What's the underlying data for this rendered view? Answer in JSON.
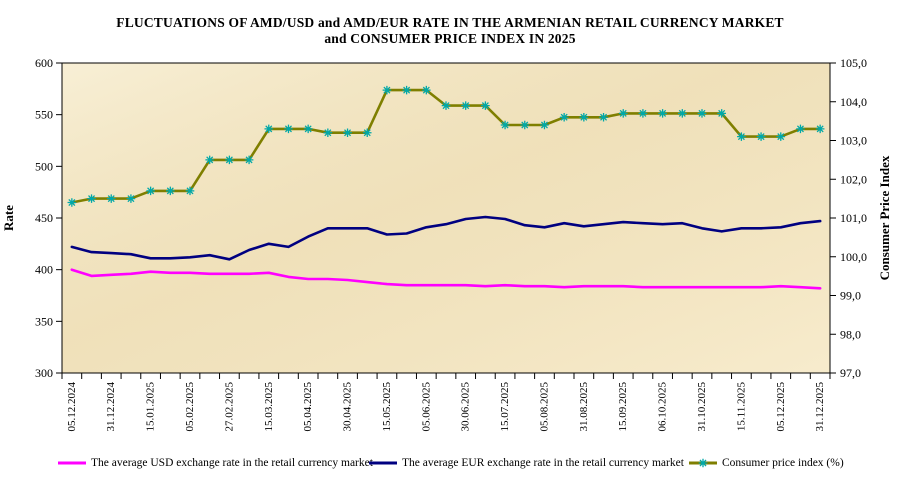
{
  "title": {
    "line1": "FLUCTUATIONS OF AMD/USD and AMD/EUR RATE IN THE ARMENIAN RETAIL CURRENCY MARKET",
    "line2": "and CONSUMER PRICE INDEX IN 2025"
  },
  "colors": {
    "background": "#FFFFFF",
    "plot_bg": "#F2E4C0",
    "axis": "#000000",
    "usd_line": "#FF00FF",
    "eur_line": "#000080",
    "cpi_line": "#7F7F00",
    "cpi_marker": "#00A8A8"
  },
  "chart_data": {
    "type": "line",
    "n_points": 39,
    "x_label_step": 2,
    "x_tick_labels": [
      "05.12.2024",
      "31.12.2024",
      "15.01.2025",
      "05.02.2025",
      "27.02.2025",
      "15.03.2025",
      "05.04.2025",
      "30.04.2025",
      "15.05.2025",
      "05.06.2025",
      "30.06.2025",
      "15.07.2025",
      "05.08.2025",
      "31.08.2025",
      "15.09.2025",
      "06.10.2025",
      "31.10.2025",
      "15.11.2025",
      "05.12.2025",
      "31.12.2025"
    ],
    "grid": false,
    "legend_position": "bottom",
    "axes": {
      "left": {
        "label": "Rate",
        "min": 300,
        "max": 600,
        "ticks": [
          "600",
          "550",
          "500",
          "450",
          "400",
          "350",
          "300"
        ]
      },
      "right": {
        "label": "Consumer  Price Index",
        "min": 97,
        "max": 105,
        "ticks": [
          "105,0",
          "104,0",
          "103,0",
          "102,0",
          "101,0",
          "100,0",
          "99,0",
          "98,0",
          "97,0"
        ]
      }
    },
    "series": [
      {
        "key": "usd",
        "name": "The average USD exchange rate in the retail currency market",
        "axis": "left",
        "color": "#FF00FF",
        "marker": null,
        "values": [
          400,
          394,
          395,
          396,
          398,
          397,
          397,
          396,
          396,
          396,
          397,
          393,
          391,
          391,
          390,
          388,
          386,
          385,
          385,
          385,
          385,
          384,
          385,
          384,
          384,
          383,
          384,
          384,
          384,
          383,
          383,
          383,
          383,
          383,
          383,
          383,
          384,
          383,
          382
        ]
      },
      {
        "key": "eur",
        "name": "The average EUR exchange rate in the retail currency market",
        "axis": "left",
        "color": "#000080",
        "marker": null,
        "values": [
          422,
          417,
          416,
          415,
          411,
          411,
          412,
          414,
          410,
          419,
          425,
          422,
          432,
          440,
          440,
          440,
          434,
          435,
          441,
          444,
          449,
          451,
          449,
          443,
          441,
          445,
          442,
          444,
          446,
          445,
          444,
          445,
          440,
          437,
          440,
          440,
          441,
          445,
          447
        ]
      },
      {
        "key": "cpi",
        "name": "Consumer price index (%)",
        "axis": "right",
        "color": "#7F7F00",
        "marker": {
          "shape": "asterisk",
          "color": "#00A8A8"
        },
        "values": [
          101.4,
          101.5,
          101.5,
          101.5,
          101.7,
          101.7,
          101.7,
          102.5,
          102.5,
          102.5,
          103.3,
          103.3,
          103.3,
          103.2,
          103.2,
          103.2,
          104.3,
          104.3,
          104.3,
          103.9,
          103.9,
          103.9,
          103.4,
          103.4,
          103.4,
          103.6,
          103.6,
          103.6,
          103.7,
          103.7,
          103.7,
          103.7,
          103.7,
          103.7,
          103.1,
          103.1,
          103.1,
          103.3,
          103.3
        ]
      }
    ]
  }
}
